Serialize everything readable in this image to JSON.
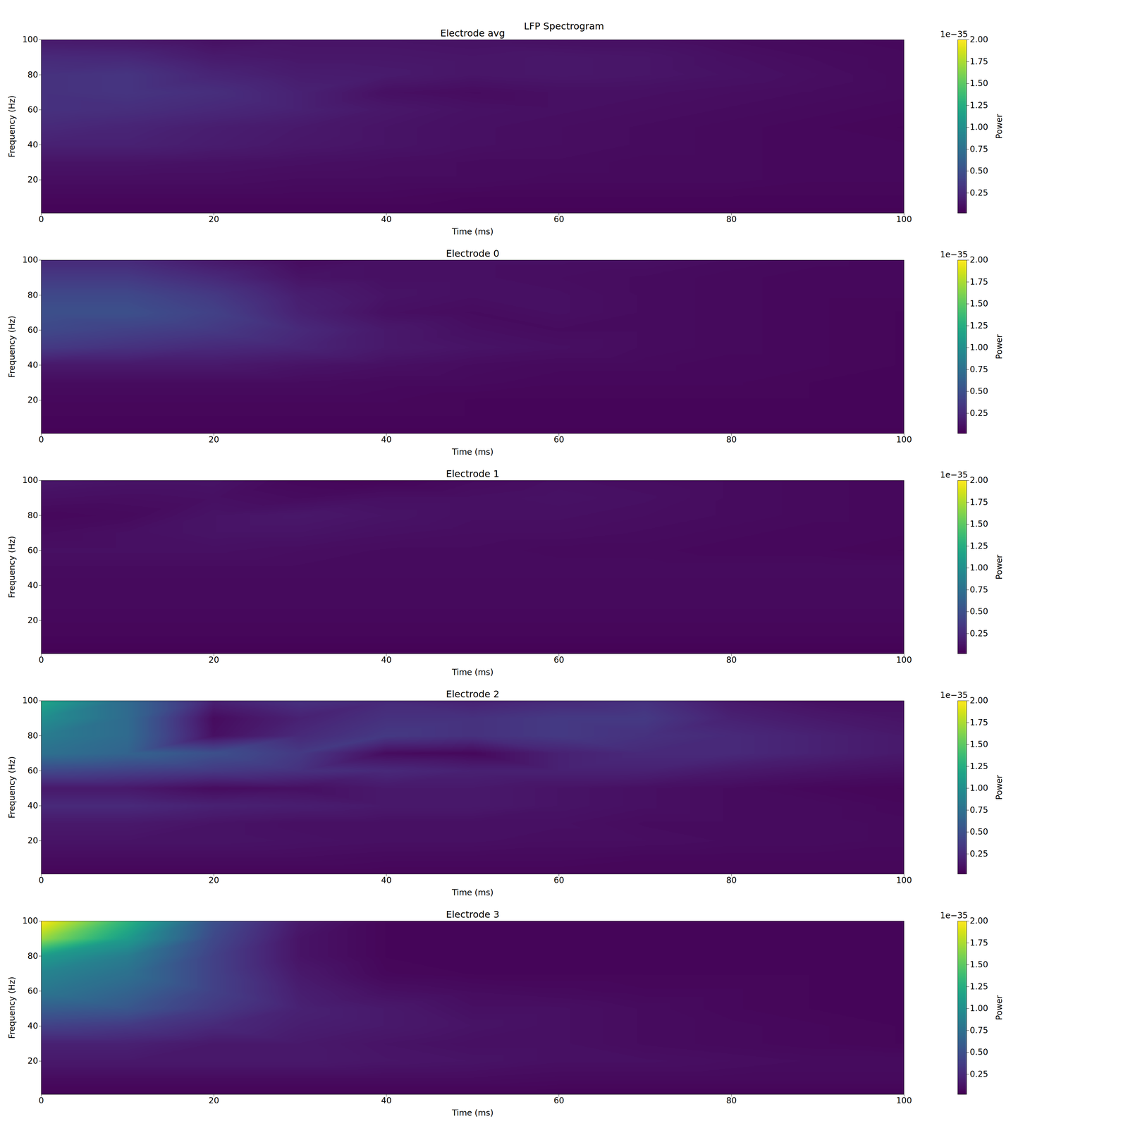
{
  "title": "LFP Spectrogram",
  "chart_data": [
    {
      "type": "heatmap",
      "title": "Electrode avg",
      "x_label": "Time (ms)",
      "y_label": "Frequency (Hz)",
      "xlim": [
        0,
        100
      ],
      "xticks": [
        0,
        20,
        40,
        60,
        80,
        100
      ],
      "ylim": [
        1,
        100
      ],
      "yticks": [
        20,
        40,
        60,
        80,
        100
      ],
      "x": [
        0,
        10,
        20,
        30,
        40,
        50,
        60,
        70,
        80,
        90,
        100
      ],
      "y": [
        1,
        10,
        20,
        30,
        40,
        50,
        60,
        70,
        80,
        90,
        100
      ],
      "power": [
        [
          0.04,
          0.04,
          0.04,
          0.04,
          0.04,
          0.04,
          0.04,
          0.04,
          0.04,
          0.04,
          0.04
        ],
        [
          0.06,
          0.06,
          0.06,
          0.06,
          0.06,
          0.05,
          0.05,
          0.05,
          0.05,
          0.05,
          0.05
        ],
        [
          0.09,
          0.09,
          0.09,
          0.08,
          0.08,
          0.08,
          0.07,
          0.07,
          0.07,
          0.06,
          0.06
        ],
        [
          0.12,
          0.12,
          0.11,
          0.1,
          0.09,
          0.08,
          0.08,
          0.07,
          0.07,
          0.06,
          0.06
        ],
        [
          0.2,
          0.2,
          0.17,
          0.14,
          0.12,
          0.1,
          0.09,
          0.08,
          0.07,
          0.06,
          0.06
        ],
        [
          0.25,
          0.22,
          0.18,
          0.15,
          0.12,
          0.1,
          0.09,
          0.08,
          0.07,
          0.06,
          0.05
        ],
        [
          0.3,
          0.28,
          0.24,
          0.2,
          0.14,
          0.11,
          0.1,
          0.09,
          0.08,
          0.07,
          0.06
        ],
        [
          0.3,
          0.32,
          0.28,
          0.2,
          0.1,
          0.08,
          0.1,
          0.1,
          0.09,
          0.08,
          0.07
        ],
        [
          0.3,
          0.32,
          0.22,
          0.17,
          0.16,
          0.13,
          0.14,
          0.13,
          0.11,
          0.09,
          0.07
        ],
        [
          0.25,
          0.24,
          0.16,
          0.14,
          0.14,
          0.13,
          0.14,
          0.13,
          0.1,
          0.08,
          0.07
        ],
        [
          0.15,
          0.14,
          0.1,
          0.12,
          0.12,
          0.11,
          0.1,
          0.1,
          0.08,
          0.07,
          0.06
        ]
      ],
      "colorbar": {
        "label": "Power",
        "range": [
          0.02,
          2.0
        ],
        "offset_label": "1e−35",
        "ticks": [
          0.25,
          {
            "value": 0.5,
            "label": "0.50"
          },
          0.75,
          {
            "value": 1.0,
            "label": "1.00"
          },
          1.25,
          {
            "value": 1.5,
            "label": "1.50"
          },
          1.75,
          {
            "value": 2.0,
            "label": "2.00"
          }
        ]
      }
    },
    {
      "type": "heatmap",
      "title": "Electrode 0",
      "x_label": "Time (ms)",
      "y_label": "Frequency (Hz)",
      "xlim": [
        0,
        100
      ],
      "xticks": [
        0,
        20,
        40,
        60,
        80,
        100
      ],
      "ylim": [
        1,
        100
      ],
      "yticks": [
        20,
        40,
        60,
        80,
        100
      ],
      "x": [
        0,
        10,
        20,
        30,
        40,
        50,
        60,
        70,
        80,
        90,
        100
      ],
      "y": [
        1,
        10,
        20,
        30,
        40,
        50,
        60,
        70,
        80,
        90,
        100
      ],
      "power": [
        [
          0.04,
          0.04,
          0.04,
          0.04,
          0.04,
          0.04,
          0.04,
          0.04,
          0.04,
          0.04,
          0.04
        ],
        [
          0.05,
          0.05,
          0.05,
          0.05,
          0.05,
          0.05,
          0.05,
          0.05,
          0.05,
          0.05,
          0.05
        ],
        [
          0.06,
          0.06,
          0.06,
          0.06,
          0.06,
          0.05,
          0.05,
          0.05,
          0.05,
          0.05,
          0.05
        ],
        [
          0.08,
          0.08,
          0.08,
          0.08,
          0.07,
          0.07,
          0.06,
          0.06,
          0.06,
          0.05,
          0.05
        ],
        [
          0.15,
          0.15,
          0.15,
          0.12,
          0.1,
          0.08,
          0.07,
          0.07,
          0.06,
          0.06,
          0.05
        ],
        [
          0.35,
          0.3,
          0.25,
          0.22,
          0.15,
          0.12,
          0.1,
          0.08,
          0.07,
          0.06,
          0.05
        ],
        [
          0.45,
          0.4,
          0.35,
          0.25,
          0.15,
          0.1,
          0.08,
          0.08,
          0.07,
          0.06,
          0.05
        ],
        [
          0.5,
          0.5,
          0.4,
          0.2,
          0.1,
          0.08,
          0.1,
          0.08,
          0.07,
          0.06,
          0.05
        ],
        [
          0.45,
          0.45,
          0.35,
          0.18,
          0.12,
          0.1,
          0.1,
          0.08,
          0.07,
          0.06,
          0.06
        ],
        [
          0.35,
          0.35,
          0.25,
          0.12,
          0.1,
          0.1,
          0.09,
          0.08,
          0.07,
          0.06,
          0.06
        ],
        [
          0.25,
          0.25,
          0.15,
          0.08,
          0.1,
          0.1,
          0.1,
          0.1,
          0.08,
          0.07,
          0.06
        ]
      ],
      "colorbar": {
        "label": "Power",
        "range": [
          0.02,
          2.0
        ],
        "offset_label": "1e−35",
        "ticks": [
          0.25,
          {
            "value": 0.5,
            "label": "0.50"
          },
          0.75,
          {
            "value": 1.0,
            "label": "1.00"
          },
          1.25,
          {
            "value": 1.5,
            "label": "1.50"
          },
          1.75,
          {
            "value": 2.0,
            "label": "2.00"
          }
        ]
      }
    },
    {
      "type": "heatmap",
      "title": "Electrode 1",
      "x_label": "Time (ms)",
      "y_label": "Frequency (Hz)",
      "xlim": [
        0,
        100
      ],
      "xticks": [
        0,
        20,
        40,
        60,
        80,
        100
      ],
      "ylim": [
        1,
        100
      ],
      "yticks": [
        20,
        40,
        60,
        80,
        100
      ],
      "x": [
        0,
        10,
        20,
        30,
        40,
        50,
        60,
        70,
        80,
        90,
        100
      ],
      "y": [
        1,
        10,
        20,
        30,
        40,
        50,
        60,
        70,
        80,
        90,
        100
      ],
      "power": [
        [
          0.03,
          0.03,
          0.03,
          0.03,
          0.03,
          0.03,
          0.03,
          0.03,
          0.03,
          0.03,
          0.03
        ],
        [
          0.05,
          0.05,
          0.05,
          0.05,
          0.05,
          0.05,
          0.05,
          0.05,
          0.05,
          0.05,
          0.05
        ],
        [
          0.06,
          0.06,
          0.06,
          0.06,
          0.06,
          0.06,
          0.06,
          0.06,
          0.06,
          0.06,
          0.06
        ],
        [
          0.07,
          0.07,
          0.07,
          0.07,
          0.07,
          0.07,
          0.07,
          0.07,
          0.07,
          0.07,
          0.07
        ],
        [
          0.07,
          0.07,
          0.07,
          0.07,
          0.07,
          0.07,
          0.07,
          0.07,
          0.07,
          0.07,
          0.07
        ],
        [
          0.08,
          0.08,
          0.08,
          0.08,
          0.08,
          0.08,
          0.08,
          0.08,
          0.08,
          0.08,
          0.08
        ],
        [
          0.1,
          0.1,
          0.1,
          0.09,
          0.08,
          0.08,
          0.07,
          0.07,
          0.06,
          0.06,
          0.05
        ],
        [
          0.08,
          0.1,
          0.12,
          0.12,
          0.1,
          0.09,
          0.09,
          0.08,
          0.07,
          0.06,
          0.06
        ],
        [
          0.06,
          0.07,
          0.12,
          0.14,
          0.12,
          0.1,
          0.1,
          0.09,
          0.08,
          0.07,
          0.06
        ],
        [
          0.1,
          0.09,
          0.1,
          0.08,
          0.1,
          0.1,
          0.11,
          0.1,
          0.08,
          0.07,
          0.06
        ],
        [
          0.14,
          0.12,
          0.12,
          0.06,
          0.05,
          0.08,
          0.1,
          0.09,
          0.08,
          0.07,
          0.06
        ]
      ],
      "colorbar": {
        "label": "Power",
        "range": [
          0.02,
          2.0
        ],
        "offset_label": "1e−35",
        "ticks": [
          0.25,
          {
            "value": 0.5,
            "label": "0.50"
          },
          0.75,
          {
            "value": 1.0,
            "label": "1.00"
          },
          1.25,
          {
            "value": 1.5,
            "label": "1.50"
          },
          1.75,
          {
            "value": 2.0,
            "label": "2.00"
          }
        ]
      }
    },
    {
      "type": "heatmap",
      "title": "Electrode 2",
      "x_label": "Time (ms)",
      "y_label": "Frequency (Hz)",
      "xlim": [
        0,
        100
      ],
      "xticks": [
        0,
        20,
        40,
        60,
        80,
        100
      ],
      "ylim": [
        1,
        100
      ],
      "yticks": [
        20,
        40,
        60,
        80,
        100
      ],
      "x": [
        0,
        10,
        20,
        30,
        40,
        50,
        60,
        70,
        80,
        90,
        100
      ],
      "y": [
        1,
        10,
        20,
        30,
        40,
        50,
        60,
        70,
        80,
        90,
        100
      ],
      "power": [
        [
          0.05,
          0.05,
          0.05,
          0.05,
          0.05,
          0.05,
          0.05,
          0.05,
          0.05,
          0.05,
          0.05
        ],
        [
          0.08,
          0.08,
          0.08,
          0.08,
          0.07,
          0.07,
          0.07,
          0.06,
          0.06,
          0.06,
          0.06
        ],
        [
          0.12,
          0.12,
          0.12,
          0.11,
          0.1,
          0.1,
          0.09,
          0.09,
          0.08,
          0.08,
          0.07
        ],
        [
          0.15,
          0.15,
          0.12,
          0.1,
          0.1,
          0.1,
          0.1,
          0.08,
          0.08,
          0.08,
          0.07
        ],
        [
          0.25,
          0.25,
          0.2,
          0.18,
          0.15,
          0.15,
          0.12,
          0.1,
          0.08,
          0.08,
          0.06
        ],
        [
          0.15,
          0.15,
          0.08,
          0.1,
          0.15,
          0.15,
          0.12,
          0.1,
          0.08,
          0.06,
          0.05
        ],
        [
          0.45,
          0.4,
          0.35,
          0.3,
          0.25,
          0.2,
          0.2,
          0.2,
          0.15,
          0.12,
          0.1
        ],
        [
          0.75,
          0.65,
          0.5,
          0.35,
          0.08,
          0.06,
          0.2,
          0.25,
          0.25,
          0.2,
          0.15
        ],
        [
          0.85,
          0.7,
          0.1,
          0.25,
          0.35,
          0.3,
          0.35,
          0.3,
          0.25,
          0.2,
          0.15
        ],
        [
          1.0,
          0.7,
          0.08,
          0.2,
          0.3,
          0.3,
          0.35,
          0.35,
          0.2,
          0.15,
          0.12
        ],
        [
          1.2,
          0.7,
          0.2,
          0.3,
          0.25,
          0.2,
          0.25,
          0.3,
          0.15,
          0.1,
          0.1
        ]
      ],
      "colorbar": {
        "label": "Power",
        "range": [
          0.02,
          2.0
        ],
        "offset_label": "1e−35",
        "ticks": [
          0.25,
          {
            "value": 0.5,
            "label": "0.50"
          },
          0.75,
          {
            "value": 1.0,
            "label": "1.00"
          },
          1.25,
          {
            "value": 1.5,
            "label": "1.50"
          },
          1.75,
          {
            "value": 2.0,
            "label": "2.00"
          }
        ]
      }
    },
    {
      "type": "heatmap",
      "title": "Electrode 3",
      "x_label": "Time (ms)",
      "y_label": "Frequency (Hz)",
      "xlim": [
        0,
        100
      ],
      "xticks": [
        0,
        20,
        40,
        60,
        80,
        100
      ],
      "ylim": [
        1,
        100
      ],
      "yticks": [
        20,
        40,
        60,
        80,
        100
      ],
      "x": [
        0,
        10,
        20,
        30,
        40,
        50,
        60,
        70,
        80,
        90,
        100
      ],
      "y": [
        1,
        10,
        20,
        30,
        40,
        50,
        60,
        70,
        80,
        90,
        100
      ],
      "power": [
        [
          0.04,
          0.04,
          0.04,
          0.04,
          0.04,
          0.04,
          0.04,
          0.04,
          0.04,
          0.04,
          0.04
        ],
        [
          0.08,
          0.08,
          0.08,
          0.08,
          0.08,
          0.08,
          0.07,
          0.07,
          0.07,
          0.07,
          0.07
        ],
        [
          0.15,
          0.15,
          0.15,
          0.15,
          0.13,
          0.12,
          0.1,
          0.1,
          0.09,
          0.08,
          0.08
        ],
        [
          0.2,
          0.2,
          0.15,
          0.15,
          0.12,
          0.1,
          0.1,
          0.08,
          0.07,
          0.06,
          0.05
        ],
        [
          0.4,
          0.35,
          0.25,
          0.18,
          0.15,
          0.12,
          0.1,
          0.08,
          0.07,
          0.06,
          0.05
        ],
        [
          0.6,
          0.55,
          0.35,
          0.2,
          0.15,
          0.1,
          0.1,
          0.08,
          0.06,
          0.05,
          0.05
        ],
        [
          0.8,
          0.65,
          0.4,
          0.18,
          0.1,
          0.08,
          0.07,
          0.06,
          0.06,
          0.05,
          0.05
        ],
        [
          0.9,
          0.75,
          0.4,
          0.15,
          0.06,
          0.05,
          0.05,
          0.05,
          0.05,
          0.05,
          0.05
        ],
        [
          1.1,
          0.85,
          0.4,
          0.12,
          0.05,
          0.05,
          0.05,
          0.05,
          0.05,
          0.05,
          0.05
        ],
        [
          1.7,
          1.1,
          0.45,
          0.12,
          0.05,
          0.05,
          0.05,
          0.05,
          0.05,
          0.05,
          0.05
        ],
        [
          2.0,
          1.3,
          0.5,
          0.15,
          0.05,
          0.05,
          0.05,
          0.05,
          0.05,
          0.05,
          0.05
        ]
      ],
      "colorbar": {
        "label": "Power",
        "range": [
          0.02,
          2.0
        ],
        "offset_label": "1e−35",
        "ticks": [
          0.25,
          {
            "value": 0.5,
            "label": "0.50"
          },
          0.75,
          {
            "value": 1.0,
            "label": "1.00"
          },
          1.25,
          {
            "value": 1.5,
            "label": "1.50"
          },
          1.75,
          {
            "value": 2.0,
            "label": "2.00"
          }
        ]
      }
    }
  ]
}
